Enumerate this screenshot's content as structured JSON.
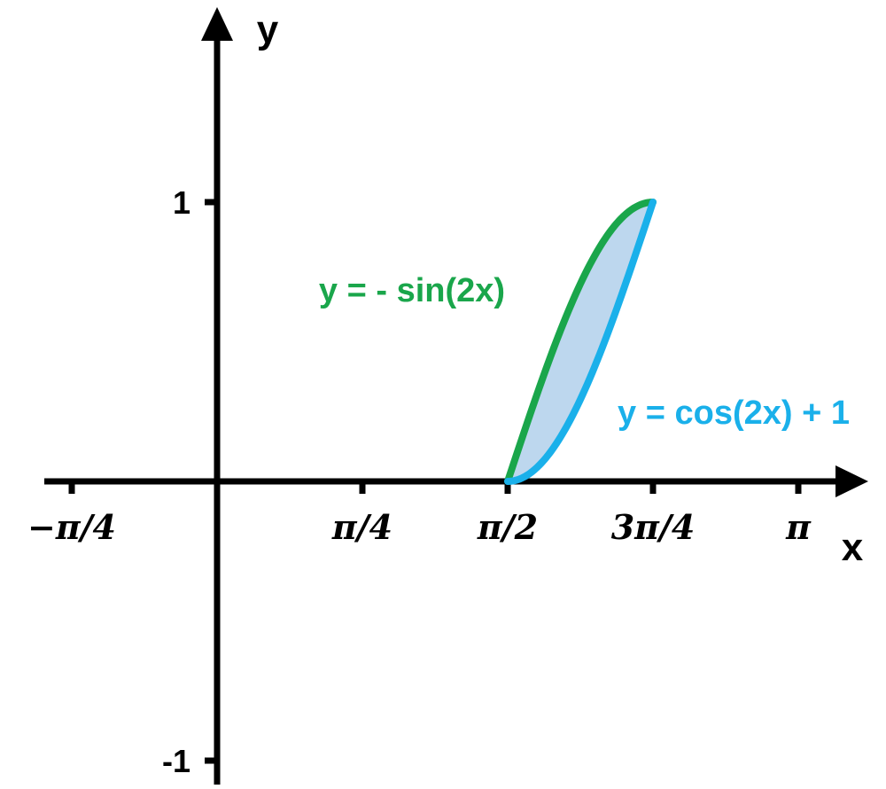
{
  "chart_data": {
    "type": "line",
    "xlabel": "x",
    "ylabel": "y",
    "xlim": [
      -0.785398,
      3.35
    ],
    "ylim": [
      -1.0,
      1.45
    ],
    "x_ticks": [
      {
        "value": -0.785398,
        "label": "−π/4"
      },
      {
        "value": 0.785398,
        "label": "π/4"
      },
      {
        "value": 1.570796,
        "label": "π/2"
      },
      {
        "value": 2.356194,
        "label": "3π/4"
      },
      {
        "value": 3.141593,
        "label": "π"
      }
    ],
    "y_ticks": [
      {
        "value": 1,
        "label": "1"
      },
      {
        "value": -1,
        "label": "-1"
      }
    ],
    "series": [
      {
        "name": "y = - sin(2x)",
        "color": "#1aa64b",
        "x": [
          1.570796,
          1.668971,
          1.767146,
          1.865321,
          1.963495,
          2.06167,
          2.159845,
          2.25802,
          2.356194
        ],
        "y": [
          0.0,
          0.1951,
          0.3827,
          0.5556,
          0.7071,
          0.8315,
          0.9239,
          0.9808,
          1.0
        ]
      },
      {
        "name": "y = cos(2x) + 1",
        "color": "#1ab0ea",
        "x": [
          1.570796,
          1.668971,
          1.767146,
          1.865321,
          1.963495,
          2.06167,
          2.159845,
          2.25802,
          2.356194
        ],
        "y": [
          0.0,
          0.0192,
          0.0761,
          0.1685,
          0.2929,
          0.4444,
          0.6173,
          0.8049,
          1.0
        ]
      }
    ],
    "shaded_region": {
      "between": [
        "y = - sin(2x)",
        "y = cos(2x) + 1"
      ],
      "x_range": [
        1.570796,
        2.356194
      ],
      "fill": "#bdd7ee"
    },
    "axis_color": "#000000",
    "grid": false,
    "legend": "none"
  }
}
